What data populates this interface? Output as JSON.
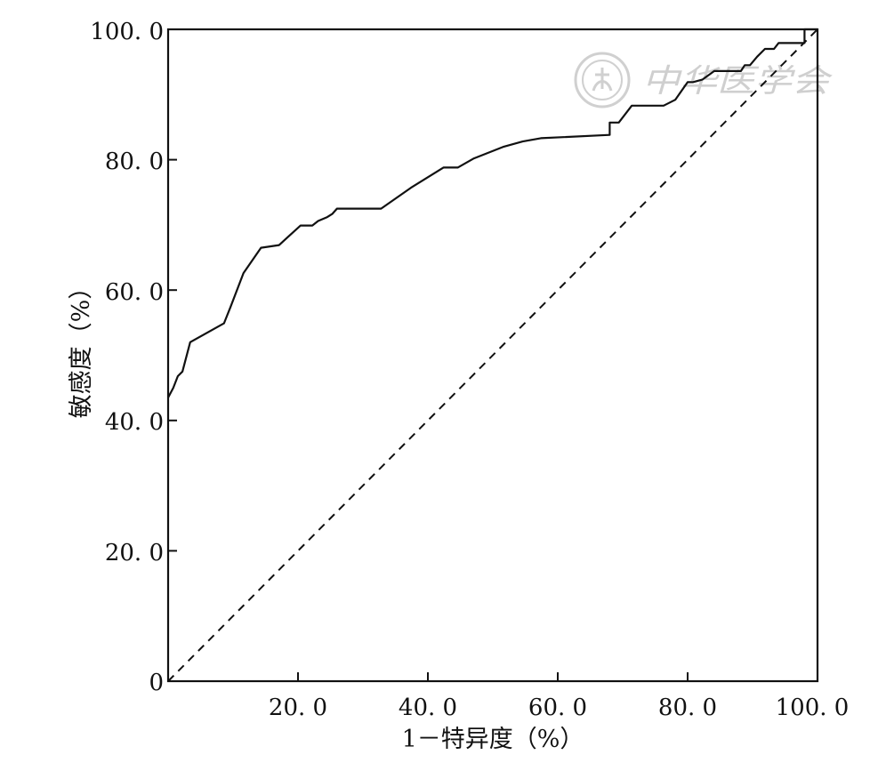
{
  "chart_data": {
    "type": "line",
    "title": "",
    "xlabel": "1－特异度（%）",
    "ylabel": "敏感度（%）",
    "xlim": [
      0,
      100
    ],
    "ylim": [
      0,
      100
    ],
    "x_ticks": [
      "20. 0",
      "40. 0",
      "60. 0",
      "80. 0",
      "100. 0"
    ],
    "x_tick_values": [
      20,
      40,
      60,
      80,
      100
    ],
    "y_ticks": [
      "0",
      "20. 0",
      "40. 0",
      "60. 0",
      "80. 0",
      "100. 0"
    ],
    "y_tick_values": [
      0,
      20,
      40,
      60,
      80,
      100
    ],
    "grid": false,
    "legend": "none",
    "series": [
      {
        "style": "solid",
        "color": "#111111",
        "x": [
          0,
          0.8,
          1.5,
          2.2,
          3.4,
          8.6,
          9.6,
          11.6,
          14.3,
          17.1,
          18.4,
          20.4,
          22.2,
          23.1,
          24.5,
          25.3,
          26.0,
          32.8,
          37.4,
          42.4,
          44.6,
          47.1,
          51.7,
          54.6,
          57.4,
          68.0,
          68.0,
          69.4,
          71.4,
          76.3,
          78.1,
          80.0,
          80.8,
          82.3,
          84.1,
          85.5,
          88.2,
          88.8,
          89.6,
          90.7,
          91.9,
          93.3,
          94.0,
          97.6,
          98.0,
          98.0,
          100
        ],
        "y": [
          43.5,
          45.0,
          46.8,
          47.5,
          52.0,
          54.9,
          57.4,
          62.6,
          66.5,
          66.9,
          68.1,
          69.9,
          69.9,
          70.6,
          71.2,
          71.7,
          72.5,
          72.5,
          75.7,
          78.8,
          78.8,
          80.2,
          82.0,
          82.8,
          83.3,
          83.8,
          85.7,
          85.7,
          88.3,
          88.3,
          89.2,
          91.9,
          91.9,
          92.3,
          93.6,
          93.6,
          93.6,
          94.5,
          94.5,
          95.8,
          97.0,
          97.0,
          97.9,
          97.9,
          97.9,
          100.0,
          100.0
        ]
      },
      {
        "style": "dashed",
        "color": "#111111",
        "x": [
          0,
          100
        ],
        "y": [
          0,
          100
        ]
      }
    ]
  },
  "watermark": {
    "text": "中华医学会",
    "color": "#cfcfcf"
  }
}
